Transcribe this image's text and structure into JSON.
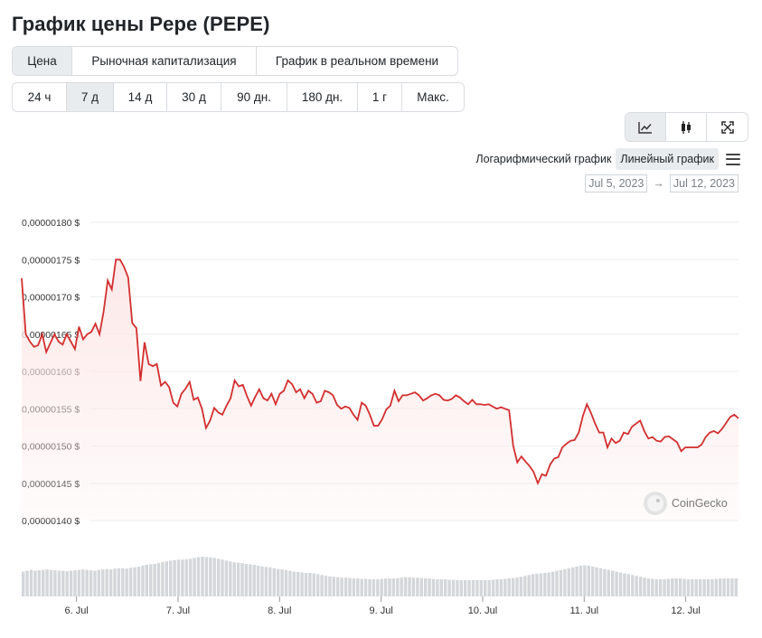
{
  "title": "График цены Pepe (PEPE)",
  "view_tabs": [
    {
      "label": "Цена",
      "active": true
    },
    {
      "label": "Рыночная капитализация",
      "active": false
    },
    {
      "label": "График в реальном времени",
      "active": false
    }
  ],
  "range_tabs": [
    {
      "label": "24 ч",
      "active": false
    },
    {
      "label": "7 д",
      "active": true
    },
    {
      "label": "14 д",
      "active": false
    },
    {
      "label": "30 д",
      "active": false
    },
    {
      "label": "90 дн.",
      "active": false
    },
    {
      "label": "180 дн.",
      "active": false
    },
    {
      "label": "1 г",
      "active": false
    },
    {
      "label": "Макс.",
      "active": false
    }
  ],
  "chart_mode_icons": [
    "line-chart-icon",
    "candlestick-icon",
    "fullscreen-icon"
  ],
  "scale": {
    "log_label": "Логарифмический график",
    "linear_label": "Линейный график",
    "active": "linear"
  },
  "date_range": {
    "from": "Jul 5, 2023",
    "arrow": "→",
    "to": "Jul 12, 2023"
  },
  "watermark": "CoinGecko",
  "colors": {
    "line": "#d32f2f",
    "fill": "#fde8e8",
    "volume": "#d3d6da",
    "active_tab": "#e9ecef"
  },
  "chart_data": {
    "type": "area",
    "series": [
      {
        "values": [
          172.5,
          165,
          164,
          163.3,
          163.5,
          165,
          162.6,
          163.8,
          165,
          164,
          163.6,
          165,
          164,
          163,
          166,
          164.3,
          165,
          165.3,
          166.4,
          165,
          168,
          172.2,
          171,
          175,
          175,
          174,
          172.6,
          166.5,
          165.8,
          158.7,
          163.9,
          161,
          160.7,
          161,
          158.1,
          158.6,
          157.9,
          155.8,
          155.3,
          157,
          157.7,
          158.6,
          156.2,
          156.5,
          155,
          152.4,
          153.4,
          155.1,
          154.5,
          154.2,
          155.4,
          156.4,
          158.8,
          158,
          158.2,
          156.7,
          155.4,
          156.6,
          157.6,
          156.4,
          156.1,
          157,
          155.6,
          157,
          157.4,
          158.8,
          158.3,
          157.2,
          157.6,
          156.4,
          157.4,
          157,
          155.8,
          156,
          157.4,
          157.2,
          156.8,
          155.5,
          155,
          155.3,
          155.1,
          154.2,
          153.5,
          155.8,
          155.4,
          154.2,
          152.7,
          152.7,
          153.6,
          154.9,
          155.4,
          157.4,
          156,
          156.8,
          156.8,
          157,
          157.2,
          156.8,
          156.1,
          156.4,
          156.8,
          157,
          156.8,
          156.2,
          156.1,
          156.3,
          156.8,
          156.5,
          156,
          155.6,
          156.2,
          155.6,
          155.6,
          155.5,
          155.6,
          155.3,
          155,
          155.2,
          155,
          154.8,
          150,
          147.8,
          148.6,
          147.9,
          147.3,
          146.5,
          145,
          146.2,
          146,
          147.5,
          148.3,
          148.5,
          149.8,
          150.3,
          150.7,
          150.8,
          151.8,
          154,
          155.6,
          154.4,
          153,
          151.8,
          151.8,
          149.8,
          151,
          150.4,
          150.7,
          151.8,
          151.6,
          152.6,
          153,
          153.4,
          152,
          151,
          151.2,
          150.7,
          150.6,
          151.2,
          151.3,
          150.9,
          150.5,
          149.3,
          149.8,
          149.8,
          149.8,
          149.8,
          150.2,
          151.2,
          151.8,
          152,
          151.7,
          152.3,
          153.1,
          153.9,
          154.2,
          153.7
        ]
      }
    ],
    "y_tick_labels": [
      "0,00000180 $",
      "0,00000175 $",
      "0,00000170 $",
      "0,00000165 $",
      "0,00000160 $",
      "0,00000155 $",
      "0,00000150 $",
      "0,00000145 $",
      "0,00000140 $"
    ],
    "y_ticks": [
      180,
      175,
      170,
      165,
      160,
      155,
      150,
      145,
      140
    ],
    "y_unit": "×1e-8 $",
    "ylim": [
      140,
      180
    ],
    "x_tick_labels": [
      "6. Jul",
      "7. Jul",
      "8. Jul",
      "9. Jul",
      "10. Jul",
      "11. Jul",
      "12. Jul"
    ],
    "x_range_days": [
      5.46,
      12.52
    ],
    "grid": true,
    "volume": [
      58,
      60,
      62,
      60,
      61,
      62,
      63,
      62,
      61,
      60,
      60,
      59,
      60,
      61,
      62,
      63,
      62,
      61,
      60,
      62,
      63,
      64,
      63,
      65,
      66,
      66,
      65,
      67,
      68,
      70,
      72,
      74,
      75,
      76,
      78,
      80,
      82,
      84,
      85,
      86,
      86,
      87,
      88,
      90,
      92,
      93,
      92,
      91,
      90,
      88,
      86,
      84,
      82,
      80,
      79,
      78,
      76,
      75,
      74,
      72,
      70,
      69,
      68,
      66,
      64,
      63,
      62,
      60,
      58,
      57,
      56,
      55,
      55,
      54,
      52,
      50,
      48,
      47,
      46,
      45,
      44,
      44,
      43,
      42,
      42,
      41,
      41,
      40,
      40,
      40,
      41,
      42,
      42,
      42,
      43,
      44,
      45,
      45,
      44,
      44,
      43,
      42,
      42,
      41,
      40,
      40,
      40,
      39,
      39,
      38,
      38,
      38,
      38,
      38,
      38,
      38,
      38,
      38,
      39,
      40,
      40,
      41,
      42,
      43,
      44,
      46,
      48,
      50,
      52,
      53,
      54,
      55,
      56,
      58,
      60,
      62,
      64,
      66,
      68,
      70,
      72,
      73,
      72,
      70,
      68,
      66,
      64,
      62,
      60,
      58,
      56,
      54,
      52,
      50,
      48,
      46,
      44,
      42,
      41,
      40,
      40,
      40,
      41,
      42,
      42,
      42,
      41,
      40,
      40,
      40,
      40,
      40,
      40,
      40,
      41,
      42,
      42,
      42,
      42,
      42
    ]
  }
}
